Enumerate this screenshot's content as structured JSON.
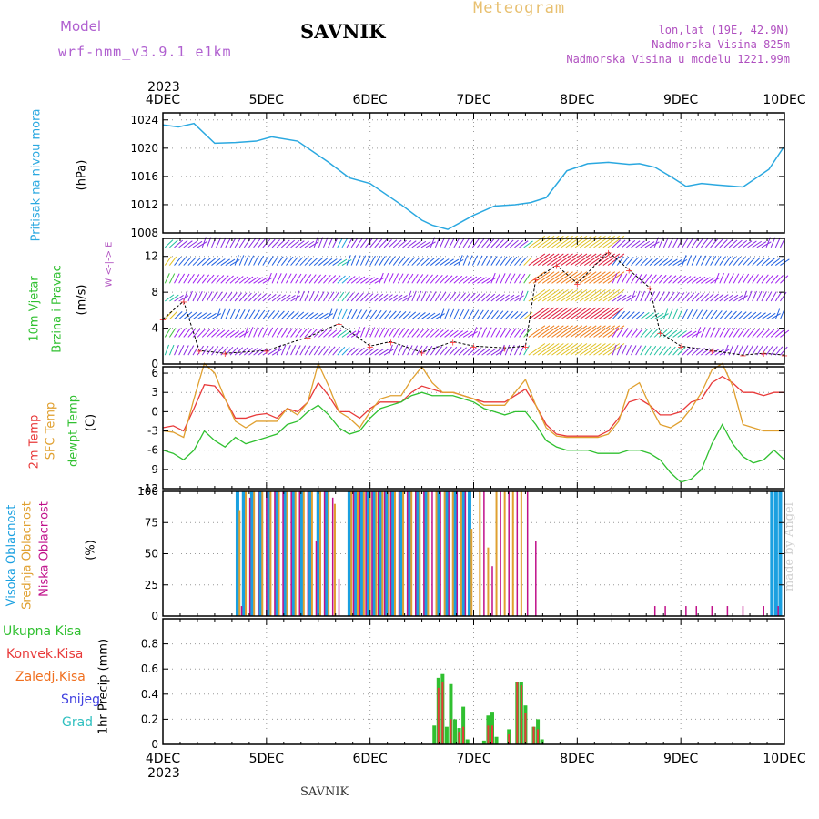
{
  "header": {
    "model_label": "Model",
    "model_name": "wrf-nmm_v3.9.1  e1km",
    "station": "SAVNIK",
    "meteogram": "Meteogram",
    "lonlat": "lon,lat (19E, 42.9N)",
    "elevation": "Nadmorska Visina 825m",
    "elevation_model": "Nadmorska Visina u modelu 1221.99m"
  },
  "footer": {
    "station": "SAVNIK",
    "made_by": "made by Angel"
  },
  "time_axis": {
    "year_top": "2023",
    "year_bottom": "2023",
    "labels": [
      "4DEC",
      "5DEC",
      "6DEC",
      "7DEC",
      "8DEC",
      "9DEC",
      "10DEC"
    ]
  },
  "panel_labels": {
    "pressure": [
      "Pritisak na nivou mora",
      "(hPa)"
    ],
    "wind": [
      "10m Vjetar",
      "Brzina i Pravac",
      "(m/s)"
    ],
    "wind_compass": [
      "W",
      "<-|->",
      "E"
    ],
    "temp": [
      "2m Temp",
      "SFC Temp",
      "dewpt Temp",
      "(C)"
    ],
    "cloud": [
      "Visoka Oblacnost",
      "Srednja Oblacnost",
      "Niska Oblacnost",
      "(%)"
    ],
    "precip": [
      "Ukupna Kisa",
      "Konvek.Kisa",
      "Zaledj.Kisa",
      "Snijeg",
      "Grad",
      "1hr Precip (mm)"
    ]
  },
  "colors": {
    "pressure": "#2aa8e0",
    "t2m": "#e83a3a",
    "tsfc": "#e0a030",
    "dewpt": "#30c030",
    "high_cloud": "#1aa0e0",
    "mid_cloud": "#e0a030",
    "low_cloud": "#c0108a",
    "total_precip": "#30c030",
    "conv_precip": "#e83a3a",
    "frz_precip": "#f07020",
    "snow": "#4040e0",
    "hail": "#30c0c0",
    "label_magenta": "#b050c0"
  },
  "chart_data": [
    {
      "type": "line",
      "name": "pressure",
      "ylabel": "(hPa)",
      "ylim": [
        1008,
        1025
      ],
      "yticks": [
        1008,
        1012,
        1016,
        1020,
        1024
      ],
      "xlim_days": [
        0,
        6
      ],
      "x": [
        0,
        0.15,
        0.3,
        0.5,
        0.7,
        0.9,
        1.05,
        1.3,
        1.6,
        1.8,
        2.0,
        2.3,
        2.5,
        2.6,
        2.75,
        3.0,
        3.2,
        3.4,
        3.55,
        3.7,
        3.9,
        4.1,
        4.3,
        4.5,
        4.6,
        4.75,
        4.9,
        5.05,
        5.2,
        5.35,
        5.6,
        5.85,
        6.0
      ],
      "values": [
        1023.3,
        1023.0,
        1023.5,
        1020.7,
        1020.8,
        1021.0,
        1021.6,
        1021.0,
        1018.0,
        1015.8,
        1015.0,
        1012.0,
        1009.8,
        1009.1,
        1008.5,
        1010.5,
        1011.8,
        1012.0,
        1012.3,
        1013.0,
        1016.8,
        1017.8,
        1018.0,
        1017.7,
        1017.8,
        1017.3,
        1016.0,
        1014.6,
        1015.0,
        1014.8,
        1014.5,
        1017.0,
        1020.3
      ]
    },
    {
      "type": "barb",
      "name": "wind",
      "ylabel": "(m/s)",
      "ylim": [
        0,
        14
      ],
      "yticks": [
        0,
        4,
        8,
        12
      ],
      "xlim_days": [
        0,
        6
      ],
      "speed_x": [
        0,
        0.2,
        0.35,
        0.6,
        1.0,
        1.4,
        1.7,
        2.0,
        2.2,
        2.5,
        2.8,
        3.0,
        3.3,
        3.5,
        3.6,
        3.8,
        4.0,
        4.3,
        4.5,
        4.7,
        4.8,
        5.0,
        5.3,
        5.6,
        5.8,
        6.0
      ],
      "speed_y": [
        5.0,
        7.0,
        1.5,
        1.2,
        1.5,
        3.0,
        4.5,
        2.0,
        2.5,
        1.3,
        2.5,
        2.0,
        1.8,
        2.0,
        9.5,
        11.0,
        9.0,
        12.5,
        10.5,
        8.5,
        3.5,
        2.0,
        1.5,
        1.0,
        1.2,
        1.0
      ]
    },
    {
      "type": "line",
      "name": "temperature",
      "ylabel": "(C)",
      "ylim": [
        -12,
        7
      ],
      "yticks": [
        -12,
        -9,
        -6,
        -3,
        0,
        3,
        6
      ],
      "xlim_days": [
        0,
        6
      ],
      "x": [
        0,
        0.1,
        0.2,
        0.3,
        0.4,
        0.5,
        0.6,
        0.7,
        0.8,
        0.9,
        1.0,
        1.1,
        1.2,
        1.3,
        1.4,
        1.5,
        1.6,
        1.7,
        1.8,
        1.9,
        2.0,
        2.1,
        2.2,
        2.3,
        2.4,
        2.5,
        2.6,
        2.7,
        2.8,
        2.9,
        3.0,
        3.1,
        3.2,
        3.3,
        3.4,
        3.5,
        3.6,
        3.7,
        3.8,
        3.9,
        4.0,
        4.1,
        4.2,
        4.3,
        4.4,
        4.5,
        4.6,
        4.7,
        4.8,
        4.9,
        5.0,
        5.1,
        5.2,
        5.3,
        5.4,
        5.5,
        5.6,
        5.7,
        5.8,
        5.9,
        6.0
      ],
      "series": [
        {
          "name": "2m Temp",
          "values": [
            -2.5,
            -2.2,
            -3.0,
            0.5,
            4.2,
            4.0,
            2.0,
            -1.0,
            -1.0,
            -0.5,
            -0.3,
            -1.0,
            0.5,
            0.0,
            1.5,
            4.5,
            2.5,
            0.0,
            0.0,
            -1.0,
            0.5,
            1.5,
            1.5,
            1.5,
            3.0,
            4.0,
            3.5,
            3.0,
            3.0,
            2.5,
            2.0,
            1.5,
            1.5,
            1.5,
            2.5,
            3.5,
            1.0,
            -2.0,
            -3.5,
            -3.8,
            -3.8,
            -3.8,
            -3.8,
            -3.0,
            -1.0,
            1.5,
            2.0,
            1.0,
            -0.5,
            -0.5,
            0.0,
            1.5,
            2.0,
            4.5,
            5.5,
            4.5,
            3.0,
            3.0,
            2.5,
            3.0,
            3.0
          ]
        },
        {
          "name": "SFC Temp",
          "values": [
            -3.0,
            -3.2,
            -4.0,
            2.0,
            7.5,
            6.0,
            2.0,
            -1.5,
            -2.5,
            -1.5,
            -1.5,
            -1.5,
            0.5,
            -0.5,
            1.5,
            7.5,
            4.0,
            0.0,
            -1.0,
            -2.5,
            0.0,
            2.0,
            2.5,
            2.5,
            5.0,
            7.0,
            4.5,
            3.0,
            3.0,
            2.5,
            2.0,
            1.0,
            1.0,
            1.0,
            3.0,
            5.0,
            1.0,
            -2.5,
            -3.8,
            -4.0,
            -4.0,
            -4.0,
            -4.0,
            -3.5,
            -1.5,
            3.5,
            4.5,
            1.0,
            -2.0,
            -2.5,
            -1.5,
            0.5,
            3.0,
            6.5,
            7.5,
            4.0,
            -2.0,
            -2.5,
            -3.0,
            -3.0,
            -3.0
          ]
        },
        {
          "name": "dewpt Temp",
          "values": [
            -6.0,
            -6.5,
            -7.5,
            -6.0,
            -3.0,
            -4.5,
            -5.5,
            -4.0,
            -5.0,
            -4.5,
            -4.0,
            -3.5,
            -2.0,
            -1.5,
            0.0,
            1.0,
            -0.5,
            -2.5,
            -3.5,
            -3.0,
            -1.0,
            0.5,
            1.0,
            1.5,
            2.5,
            3.0,
            2.5,
            2.5,
            2.5,
            2.0,
            1.5,
            0.5,
            0.0,
            -0.5,
            0.0,
            0.0,
            -2.0,
            -4.5,
            -5.5,
            -6.0,
            -6.0,
            -6.0,
            -6.5,
            -6.5,
            -6.5,
            -6.0,
            -6.0,
            -6.5,
            -7.5,
            -9.5,
            -11.0,
            -10.5,
            -9.0,
            -5.0,
            -2.0,
            -5.0,
            -7.0,
            -8.0,
            -7.5,
            -6.0,
            -7.5
          ]
        }
      ]
    },
    {
      "type": "bar",
      "name": "cloud",
      "ylabel": "(%)",
      "ylim": [
        0,
        100
      ],
      "yticks": [
        0,
        25,
        50,
        75,
        100
      ],
      "xlim_days": [
        0,
        6
      ],
      "series": [
        {
          "name": "Visoka Oblacnost",
          "x": [
            0.72,
            0.78,
            0.86,
            0.94,
            1.02,
            1.1,
            1.18,
            1.26,
            1.34,
            1.42,
            1.5,
            1.58,
            1.8,
            1.86,
            1.92,
            1.98,
            2.04,
            2.1,
            2.16,
            2.22,
            2.3,
            2.38,
            2.46,
            2.54,
            2.66,
            2.74,
            2.82,
            2.9,
            2.96,
            5.88,
            5.92,
            5.96
          ],
          "values": [
            100,
            100,
            100,
            100,
            100,
            100,
            100,
            100,
            100,
            100,
            100,
            100,
            100,
            100,
            100,
            100,
            100,
            100,
            100,
            100,
            100,
            100,
            100,
            100,
            100,
            100,
            100,
            100,
            100,
            100,
            100,
            100
          ]
        },
        {
          "name": "Srednja Oblacnost",
          "x": [
            0.74,
            0.8,
            0.88,
            0.96,
            1.04,
            1.12,
            1.2,
            1.28,
            1.36,
            1.44,
            1.52,
            1.6,
            1.66,
            1.82,
            1.88,
            1.94,
            2.0,
            2.06,
            2.12,
            2.18,
            2.24,
            2.32,
            2.4,
            2.48,
            2.56,
            2.64,
            2.72,
            2.8,
            2.88,
            2.98,
            3.06,
            3.14,
            3.22,
            3.3,
            3.38,
            3.46
          ],
          "values": [
            85,
            100,
            100,
            100,
            100,
            100,
            100,
            100,
            100,
            100,
            100,
            100,
            90,
            100,
            100,
            100,
            100,
            100,
            100,
            100,
            100,
            100,
            100,
            100,
            100,
            100,
            100,
            100,
            100,
            70,
            100,
            55,
            100,
            100,
            100,
            100
          ]
        },
        {
          "name": "Niska Oblacnost",
          "x": [
            0.76,
            0.84,
            0.92,
            1.0,
            1.08,
            1.16,
            1.24,
            1.32,
            1.4,
            1.48,
            1.56,
            1.64,
            1.7,
            1.84,
            1.9,
            1.96,
            2.02,
            2.08,
            2.14,
            2.2,
            2.28,
            2.36,
            2.44,
            2.52,
            2.6,
            2.68,
            2.76,
            2.84,
            2.92,
            3.1,
            3.18,
            3.26,
            3.34,
            3.42,
            3.52,
            3.6,
            4.75,
            4.85,
            5.05,
            5.15,
            5.3,
            5.45,
            5.6,
            5.8,
            5.94
          ],
          "values": [
            8,
            95,
            100,
            100,
            100,
            100,
            100,
            100,
            100,
            60,
            100,
            95,
            30,
            100,
            100,
            100,
            100,
            100,
            100,
            100,
            100,
            100,
            100,
            100,
            100,
            100,
            100,
            100,
            100,
            100,
            40,
            100,
            100,
            100,
            100,
            60,
            8,
            8,
            8,
            8,
            8,
            8,
            8,
            8,
            8
          ]
        }
      ]
    },
    {
      "type": "bar",
      "name": "precip",
      "ylabel": "1hr Precip (mm)",
      "ylim": [
        0,
        1
      ],
      "yticks": [
        0,
        0.2,
        0.4,
        0.6,
        0.8
      ],
      "xlim_days": [
        0,
        6
      ],
      "series": [
        {
          "name": "Ukupna Kisa",
          "x": [
            2.62,
            2.66,
            2.7,
            2.74,
            2.78,
            2.82,
            2.86,
            2.9,
            2.94,
            3.1,
            3.14,
            3.18,
            3.22,
            3.34,
            3.42,
            3.46,
            3.5,
            3.58,
            3.62,
            3.66
          ],
          "values": [
            0.15,
            0.53,
            0.56,
            0.14,
            0.48,
            0.2,
            0.13,
            0.3,
            0.04,
            0.03,
            0.23,
            0.26,
            0.06,
            0.12,
            0.5,
            0.5,
            0.31,
            0.14,
            0.2,
            0.04
          ]
        },
        {
          "name": "Konvek.Kisa",
          "x": [
            2.66,
            2.7,
            2.78,
            2.86,
            2.9,
            3.14,
            3.18,
            3.34,
            3.42,
            3.46,
            3.5,
            3.58,
            3.62
          ],
          "values": [
            0.45,
            0.5,
            0.2,
            0.1,
            0.14,
            0.15,
            0.15,
            0.08,
            0.5,
            0.47,
            0.25,
            0.14,
            0.12
          ]
        }
      ]
    }
  ]
}
